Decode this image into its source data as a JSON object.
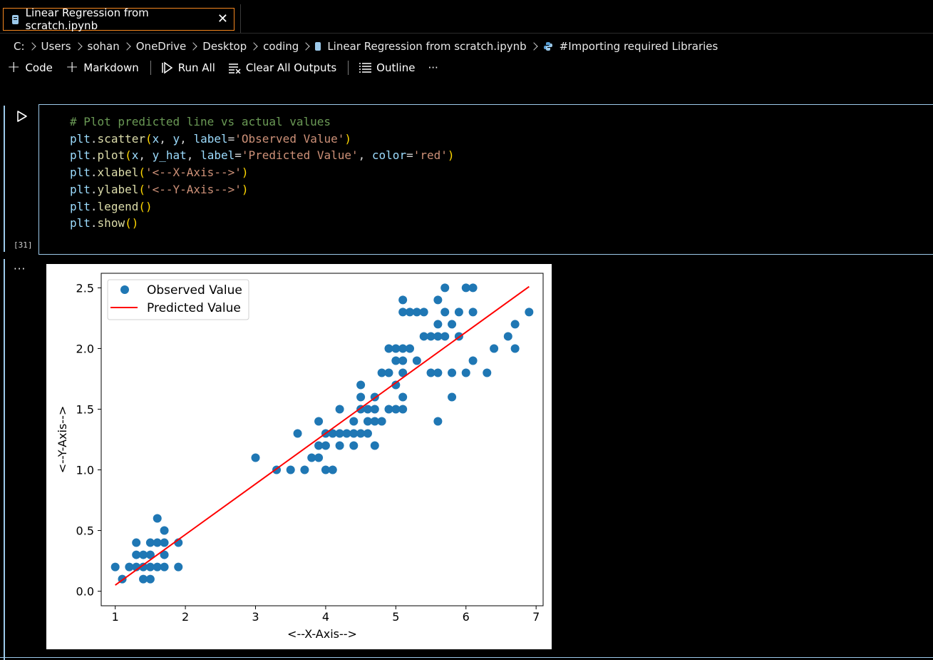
{
  "tab": {
    "title": "Linear Regression from scratch.ipynb",
    "close_glyph": "✕"
  },
  "breadcrumb": {
    "items": [
      "C:",
      "Users",
      "sohan",
      "OneDrive",
      "Desktop",
      "coding",
      "Linear Regression from scratch.ipynb",
      "#Importing required Libraries"
    ]
  },
  "toolbar": {
    "code_label": "Code",
    "markdown_label": "Markdown",
    "run_all_label": "Run All",
    "clear_outputs_label": "Clear All Outputs",
    "outline_label": "Outline",
    "more_label": "···"
  },
  "cell": {
    "execution_count": "[31]",
    "lines": [
      "# Plot predicted line vs actual values",
      "plt.scatter(x, y, label='Observed Value')",
      "plt.plot(x, y_hat, label='Predicted Value', color='red')",
      "plt.xlabel('<--X-Axis-->')",
      "plt.ylabel('<--Y-Axis-->')",
      "plt.legend()",
      "plt.show()"
    ]
  },
  "output": {
    "more_label": "···"
  },
  "colors": {
    "accent": "#9cc9ea",
    "tab_border": "#f5871f",
    "scatter": "#1f77b4",
    "line": "#ff0000"
  },
  "chart_data": {
    "type": "scatter",
    "xlabel": "<--X-Axis-->",
    "ylabel": "<--Y-Axis-->",
    "xlim": [
      0.8,
      7.1
    ],
    "ylim": [
      -0.12,
      2.62
    ],
    "xticks": [
      1,
      2,
      3,
      4,
      5,
      6,
      7
    ],
    "yticks": [
      0.0,
      0.5,
      1.0,
      1.5,
      2.0,
      2.5
    ],
    "ytick_labels": [
      "0.0",
      "0.5",
      "1.0",
      "1.5",
      "2.0",
      "2.5"
    ],
    "legend": {
      "placement": "top-left",
      "entries": [
        "Observed Value",
        "Predicted Value"
      ]
    },
    "series": [
      {
        "name": "Observed Value",
        "kind": "scatter",
        "color": "#1f77b4",
        "points": [
          [
            1.0,
            0.2
          ],
          [
            1.1,
            0.1
          ],
          [
            1.2,
            0.2
          ],
          [
            1.3,
            0.2
          ],
          [
            1.3,
            0.3
          ],
          [
            1.3,
            0.4
          ],
          [
            1.4,
            0.2
          ],
          [
            1.4,
            0.3
          ],
          [
            1.4,
            0.1
          ],
          [
            1.5,
            0.1
          ],
          [
            1.5,
            0.2
          ],
          [
            1.5,
            0.3
          ],
          [
            1.5,
            0.4
          ],
          [
            1.6,
            0.2
          ],
          [
            1.6,
            0.4
          ],
          [
            1.6,
            0.6
          ],
          [
            1.7,
            0.2
          ],
          [
            1.7,
            0.3
          ],
          [
            1.7,
            0.4
          ],
          [
            1.7,
            0.5
          ],
          [
            1.9,
            0.2
          ],
          [
            1.9,
            0.4
          ],
          [
            3.0,
            1.1
          ],
          [
            3.3,
            1.0
          ],
          [
            3.5,
            1.0
          ],
          [
            3.6,
            1.3
          ],
          [
            3.7,
            1.0
          ],
          [
            3.8,
            1.1
          ],
          [
            3.9,
            1.1
          ],
          [
            3.9,
            1.2
          ],
          [
            3.9,
            1.4
          ],
          [
            4.0,
            1.0
          ],
          [
            4.0,
            1.2
          ],
          [
            4.0,
            1.3
          ],
          [
            4.1,
            1.0
          ],
          [
            4.1,
            1.3
          ],
          [
            4.2,
            1.2
          ],
          [
            4.2,
            1.3
          ],
          [
            4.2,
            1.5
          ],
          [
            4.3,
            1.3
          ],
          [
            4.4,
            1.2
          ],
          [
            4.4,
            1.3
          ],
          [
            4.4,
            1.4
          ],
          [
            4.5,
            1.3
          ],
          [
            4.5,
            1.5
          ],
          [
            4.5,
            1.6
          ],
          [
            4.5,
            1.7
          ],
          [
            4.6,
            1.3
          ],
          [
            4.6,
            1.4
          ],
          [
            4.6,
            1.5
          ],
          [
            4.7,
            1.2
          ],
          [
            4.7,
            1.4
          ],
          [
            4.7,
            1.5
          ],
          [
            4.7,
            1.6
          ],
          [
            4.8,
            1.4
          ],
          [
            4.8,
            1.8
          ],
          [
            4.9,
            1.5
          ],
          [
            4.9,
            1.8
          ],
          [
            4.9,
            2.0
          ],
          [
            5.0,
            1.5
          ],
          [
            5.0,
            1.7
          ],
          [
            5.0,
            1.9
          ],
          [
            5.0,
            2.0
          ],
          [
            5.1,
            1.5
          ],
          [
            5.1,
            1.6
          ],
          [
            5.1,
            1.8
          ],
          [
            5.1,
            1.9
          ],
          [
            5.1,
            2.0
          ],
          [
            5.1,
            2.3
          ],
          [
            5.1,
            2.4
          ],
          [
            5.2,
            2.0
          ],
          [
            5.2,
            2.3
          ],
          [
            5.3,
            1.9
          ],
          [
            5.3,
            2.3
          ],
          [
            5.4,
            2.1
          ],
          [
            5.4,
            2.3
          ],
          [
            5.5,
            1.8
          ],
          [
            5.5,
            2.1
          ],
          [
            5.6,
            1.4
          ],
          [
            5.6,
            1.8
          ],
          [
            5.6,
            2.1
          ],
          [
            5.6,
            2.2
          ],
          [
            5.6,
            2.4
          ],
          [
            5.7,
            2.1
          ],
          [
            5.7,
            2.3
          ],
          [
            5.7,
            2.5
          ],
          [
            5.8,
            1.6
          ],
          [
            5.8,
            1.8
          ],
          [
            5.8,
            2.2
          ],
          [
            5.9,
            2.1
          ],
          [
            5.9,
            2.3
          ],
          [
            6.0,
            1.8
          ],
          [
            6.0,
            2.5
          ],
          [
            6.1,
            1.9
          ],
          [
            6.1,
            2.3
          ],
          [
            6.1,
            2.5
          ],
          [
            6.3,
            1.8
          ],
          [
            6.4,
            2.0
          ],
          [
            6.6,
            2.1
          ],
          [
            6.7,
            2.0
          ],
          [
            6.7,
            2.2
          ],
          [
            6.9,
            2.3
          ]
        ]
      },
      {
        "name": "Predicted Value",
        "kind": "line",
        "color": "#ff0000",
        "points": [
          [
            1.0,
            0.05
          ],
          [
            6.9,
            2.51
          ]
        ]
      }
    ]
  }
}
